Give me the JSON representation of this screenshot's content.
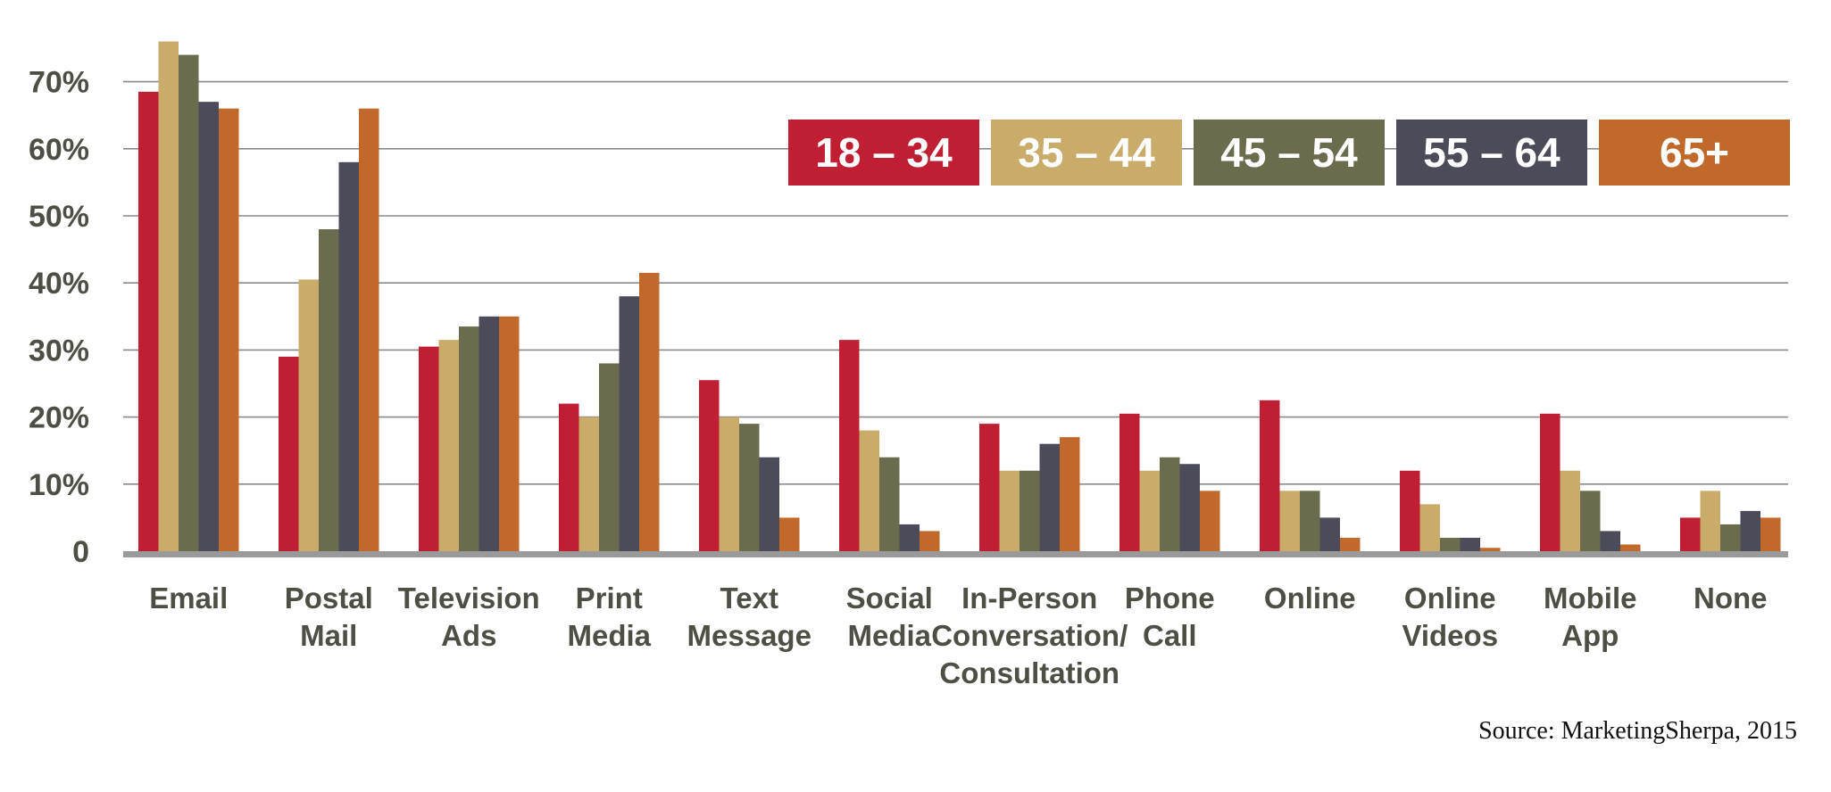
{
  "source_note": "Source: MarketingSherpa, 2015",
  "chart_data": {
    "type": "bar",
    "categories": [
      [
        "Email"
      ],
      [
        "Postal",
        "Mail"
      ],
      [
        "Television",
        "Ads"
      ],
      [
        "Print",
        "Media"
      ],
      [
        "Text",
        "Message"
      ],
      [
        "Social",
        "Media"
      ],
      [
        "In-Person",
        "Conversation/",
        "Consultation"
      ],
      [
        "Phone",
        "Call"
      ],
      [
        "Online"
      ],
      [
        "Online",
        "Videos"
      ],
      [
        "Mobile",
        "App"
      ],
      [
        "None"
      ]
    ],
    "ylim": [
      0,
      78
    ],
    "yticks": [
      {
        "value": 0,
        "label": "0"
      },
      {
        "value": 10,
        "label": "10%"
      },
      {
        "value": 20,
        "label": "20%"
      },
      {
        "value": 30,
        "label": "30%"
      },
      {
        "value": 40,
        "label": "40%"
      },
      {
        "value": 50,
        "label": "50%"
      },
      {
        "value": 60,
        "label": "60%"
      },
      {
        "value": 70,
        "label": "70%"
      }
    ],
    "grid": true,
    "legend_position": "top-right",
    "series": [
      {
        "name": "18 – 34",
        "color": "#c01f33",
        "values": [
          68.5,
          29,
          30.5,
          22,
          25.5,
          31.5,
          19,
          20.5,
          22.5,
          12,
          20.5,
          5
        ]
      },
      {
        "name": "35 – 44",
        "color": "#c9ab6a",
        "values": [
          76,
          40.5,
          31.5,
          20,
          20,
          18,
          12,
          12,
          9,
          7,
          12,
          9
        ]
      },
      {
        "name": "45 – 54",
        "color": "#6b6b4e",
        "values": [
          74,
          48,
          33.5,
          28,
          19,
          14,
          12,
          14,
          9,
          2,
          9,
          4
        ]
      },
      {
        "name": "55 – 64",
        "color": "#4b4b5a",
        "values": [
          67,
          58,
          35,
          38,
          14,
          4,
          16,
          13,
          5,
          2,
          3,
          6
        ]
      },
      {
        "name": "65+",
        "color": "#c1692a",
        "values": [
          66,
          66,
          35,
          41.5,
          5,
          3,
          17,
          9,
          2,
          0.5,
          1,
          5
        ]
      }
    ]
  }
}
